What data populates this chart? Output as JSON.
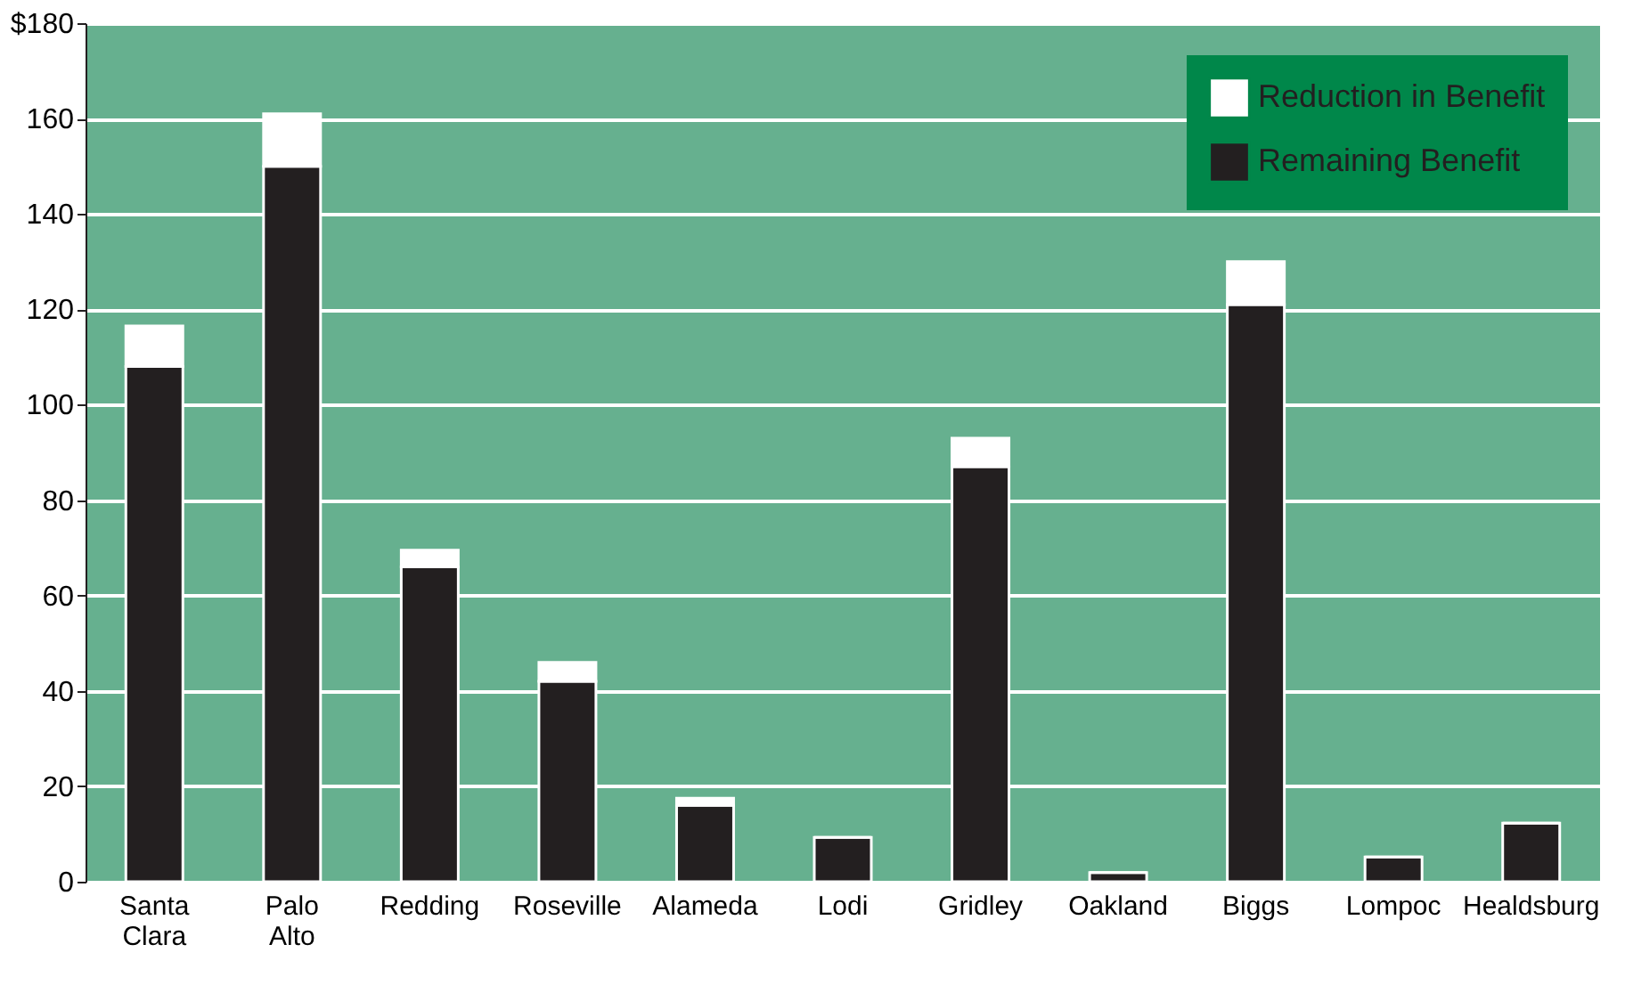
{
  "chart_data": {
    "type": "bar",
    "stacked": true,
    "categories": [
      "Santa Clara",
      "Palo Alto",
      "Redding",
      "Roseville",
      "Alameda",
      "Lodi",
      "Gridley",
      "Oakland",
      "Biggs",
      "Lompoc",
      "Healdsburg"
    ],
    "series": [
      {
        "name": "Remaining Benefit",
        "color": "#231f20",
        "values": [
          108,
          150,
          66,
          42,
          16,
          9.3,
          87,
          1.9,
          121,
          5.2,
          12.3
        ]
      },
      {
        "name": "Reduction in Benefit",
        "color": "#ffffff",
        "values": [
          8.5,
          11,
          3.5,
          4,
          1.5,
          0,
          6,
          0,
          9,
          0,
          0
        ]
      }
    ],
    "ylim": [
      0,
      180
    ],
    "yticks": [
      0,
      20,
      40,
      60,
      80,
      100,
      120,
      140,
      160,
      {
        "value": 180,
        "label": "$180"
      }
    ],
    "grid": "y",
    "legend": "top right"
  }
}
